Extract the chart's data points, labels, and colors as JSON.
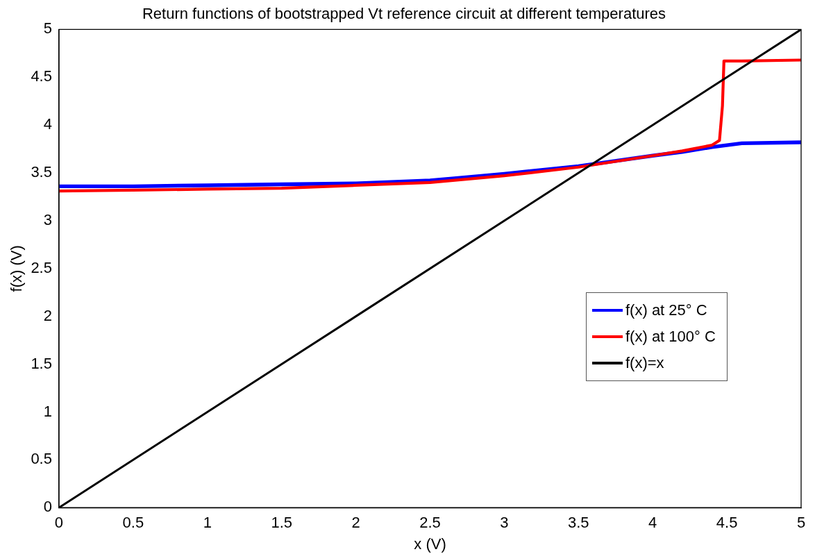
{
  "chart_data": {
    "type": "line",
    "title": "Return functions of bootstrapped Vt reference circuit at different temperatures",
    "xlabel": "x (V)",
    "ylabel": "f(x) (V)",
    "xlim": [
      0,
      5
    ],
    "xticks": [
      0,
      0.5,
      1,
      1.5,
      2,
      2.5,
      3,
      3.5,
      4,
      4.5,
      5
    ],
    "ylim": [
      0,
      5
    ],
    "yticks": [
      0,
      0.5,
      1,
      1.5,
      2,
      2.5,
      3,
      3.5,
      4,
      4.5,
      5
    ],
    "grid": false,
    "legend": "right",
    "marker": "none",
    "line_style": "solid",
    "series": [
      {
        "name": "f(x) at 25° C",
        "color": "#0000ff",
        "x": [
          0,
          0.5,
          1,
          1.5,
          2,
          2.5,
          3,
          3.5,
          4,
          4.2,
          4.4,
          4.6,
          5
        ],
        "values": [
          3.36,
          3.36,
          3.37,
          3.38,
          3.39,
          3.42,
          3.49,
          3.57,
          3.68,
          3.72,
          3.77,
          3.81,
          3.82
        ]
      },
      {
        "name": "f(x) at 100° C",
        "color": "#ff0000",
        "x": [
          0,
          0.5,
          1,
          1.5,
          2,
          2.5,
          3,
          3.5,
          4,
          4.2,
          4.4,
          4.45,
          4.47,
          4.48,
          4.6,
          5
        ],
        "values": [
          3.31,
          3.32,
          3.33,
          3.34,
          3.37,
          3.4,
          3.47,
          3.56,
          3.68,
          3.73,
          3.79,
          3.84,
          4.2,
          4.67,
          4.67,
          4.68
        ]
      },
      {
        "name": "f(x)=x",
        "color": "#000000",
        "x": [
          0,
          5
        ],
        "values": [
          0,
          5
        ]
      }
    ]
  }
}
